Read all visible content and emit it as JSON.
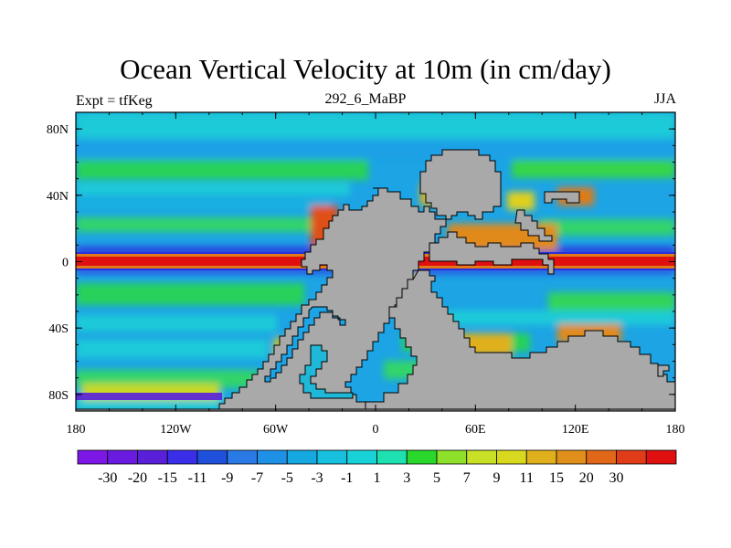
{
  "title": "Ocean Vertical Velocity at 10m (in cm/day)",
  "subtitle_left": "Expt = tfKeg",
  "subtitle_center": "292_6_MaBP",
  "subtitle_right": "JJA",
  "y_ticks": [
    {
      "lat": 80,
      "label": "80N"
    },
    {
      "lat": 40,
      "label": "40N"
    },
    {
      "lat": 0,
      "label": "0"
    },
    {
      "lat": -40,
      "label": "40S"
    },
    {
      "lat": -80,
      "label": "80S"
    }
  ],
  "x_ticks": [
    {
      "lon": -180,
      "label": "180"
    },
    {
      "lon": -120,
      "label": "120W"
    },
    {
      "lon": -60,
      "label": "60W"
    },
    {
      "lon": 0,
      "label": "0"
    },
    {
      "lon": 60,
      "label": "60E"
    },
    {
      "lon": 120,
      "label": "120E"
    },
    {
      "lon": 180,
      "label": "180"
    }
  ],
  "colorbar": {
    "colors": [
      "#7d17e6",
      "#6a1be0",
      "#5a1fd8",
      "#3a2ee8",
      "#1e50dc",
      "#2a7ae6",
      "#1e90e6",
      "#16a8e0",
      "#18c0e0",
      "#19d2d8",
      "#1ee0b0",
      "#29d82a",
      "#8ee02a",
      "#c8e026",
      "#d8d81e",
      "#e0b01c",
      "#e0901a",
      "#e06818",
      "#e03c18",
      "#e01010"
    ],
    "labels": [
      "-30",
      "-20",
      "-15",
      "-11",
      "-9",
      "-7",
      "-5",
      "-3",
      "-1",
      "1",
      "3",
      "5",
      "7",
      "9",
      "11",
      "15",
      "20",
      "30"
    ]
  },
  "colors": {
    "land": "#a9a9a9",
    "background_ocean": "#1aa0e6"
  }
}
